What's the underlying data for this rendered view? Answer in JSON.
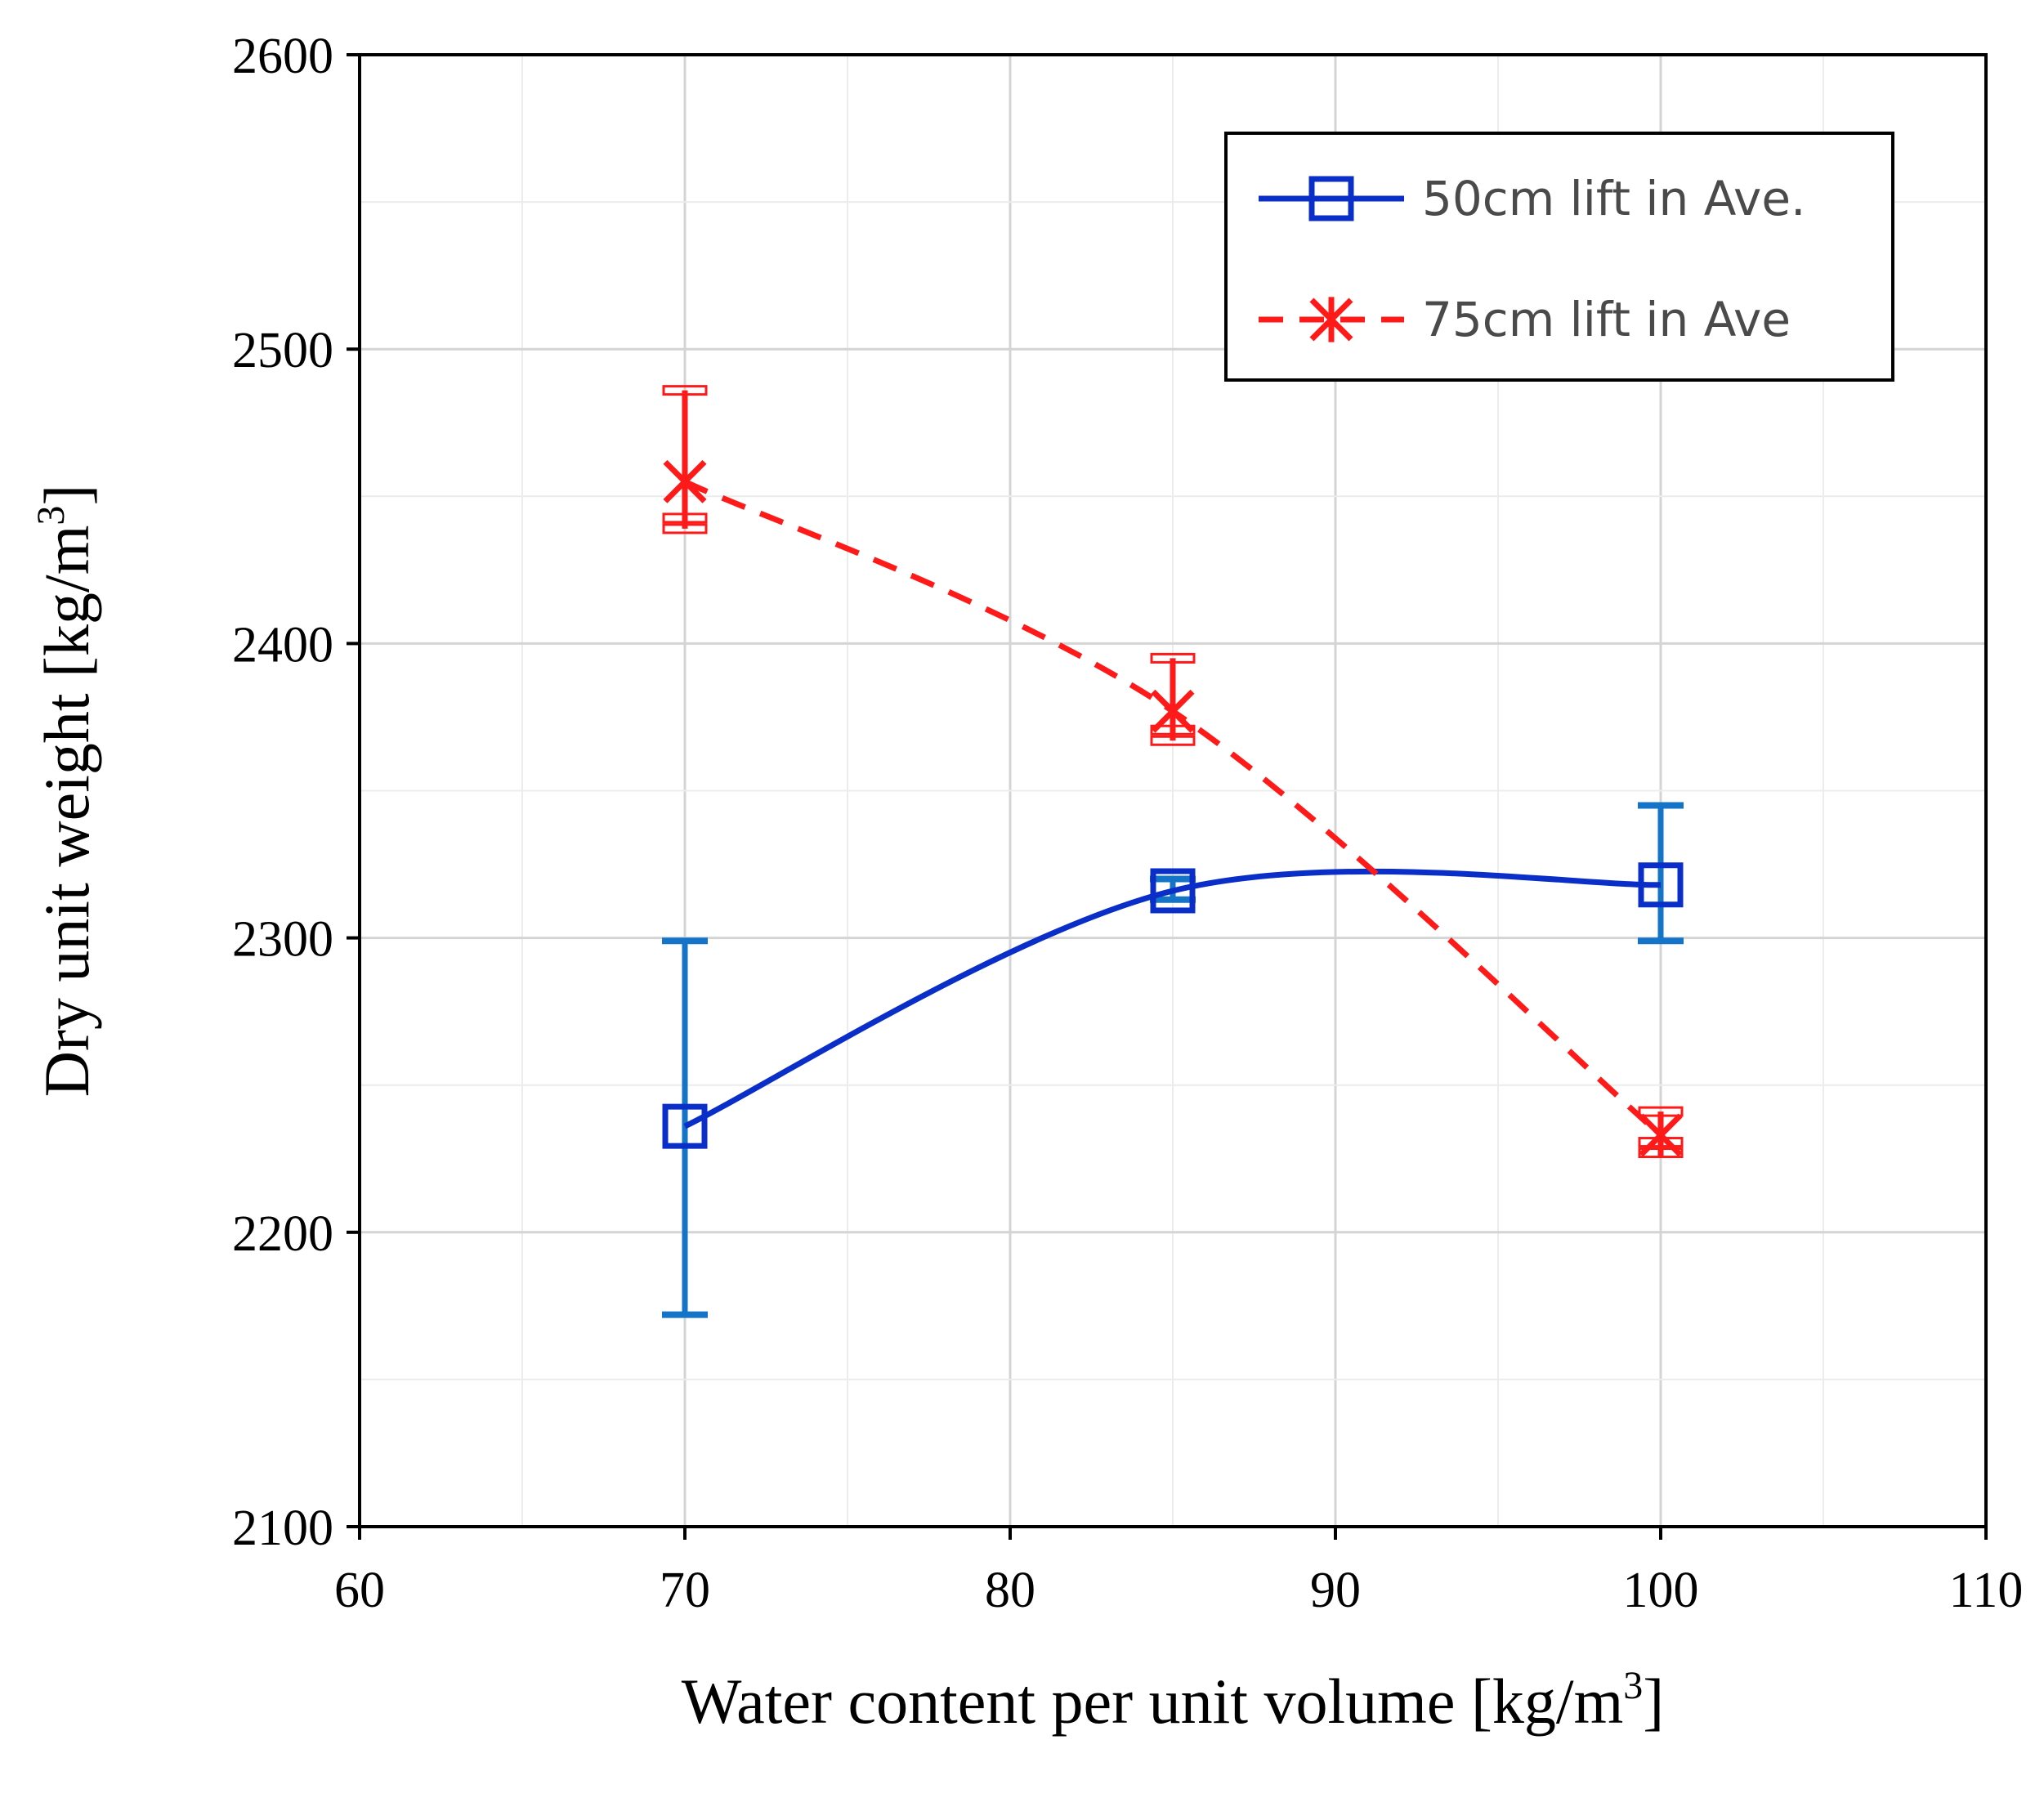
{
  "chart_data": {
    "type": "line",
    "xlabel": "Water content per unit volume [kg/m",
    "ylabel": "Dry unit weight [kg/m",
    "unit_superscript": "3",
    "unit_close": "]",
    "xlim": [
      60,
      110
    ],
    "ylim": [
      2100,
      2600
    ],
    "x_ticks": [
      60,
      70,
      80,
      90,
      100,
      110
    ],
    "y_ticks": [
      2100,
      2200,
      2300,
      2400,
      2500,
      2600
    ],
    "x_minor_step": 5,
    "y_minor_step": 50,
    "grid": true,
    "legend_position": "top-right",
    "series": [
      {
        "name": "50cm lift in Ave.",
        "color": "#0a2ec8",
        "errorbar_color": "#1474c8",
        "line_style": "solid",
        "marker": "square",
        "smooth": true,
        "x": [
          70,
          85,
          100
        ],
        "y": [
          2236,
          2316,
          2318
        ],
        "y_upper": [
          2299,
          2320,
          2345
        ],
        "y_lower": [
          2172,
          2313,
          2299
        ]
      },
      {
        "name": "75cm lift in Ave",
        "color": "#ff1a1a",
        "errorbar_color": "#ff1a1a",
        "line_style": "dashed",
        "marker": "asterisk",
        "smooth": true,
        "x": [
          70,
          85,
          100
        ],
        "y": [
          2455,
          2377,
          2233
        ],
        "y_upper": [
          2486,
          2395,
          2241
        ],
        "y_lower": [
          2439,
          2367,
          2227
        ]
      }
    ]
  }
}
